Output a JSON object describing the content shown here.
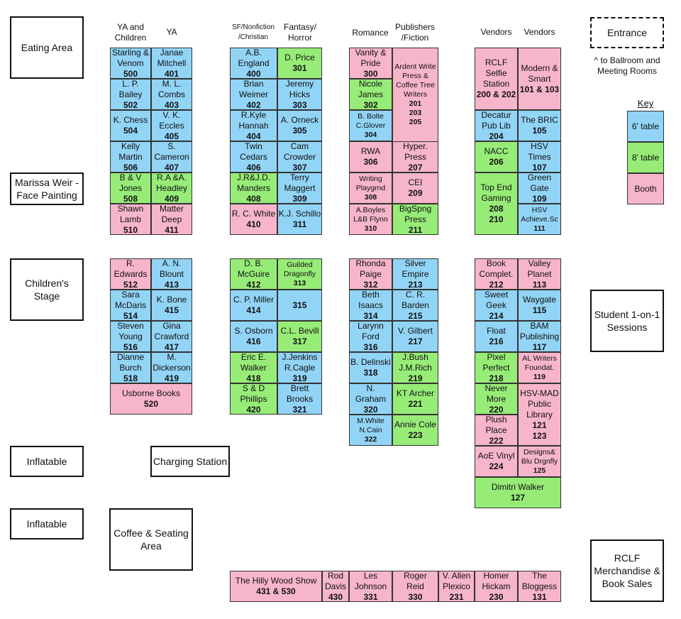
{
  "headers": {
    "c1": "YA and\nChildren",
    "c2": "YA",
    "c3": "SF/Nonfiction\n/Christian",
    "c4": "Fantasy/\nHorror",
    "c5": "Romance",
    "c6": "Publishers\n/Fiction",
    "c7": "Vendors",
    "c8": "Vendors"
  },
  "areas": {
    "eating": "Eating Area",
    "face": "Marissa Weir -\nFace Painting",
    "stage": "Children's\nStage",
    "inflatable1": "Inflatable",
    "charging": "Charging Station",
    "inflatable2": "Inflatable",
    "coffee": "Coffee & Seating\nArea",
    "entrance": "Entrance",
    "student": "Student 1-on-1\nSessions",
    "merch": "RCLF\nMerchandise &\nBook Sales"
  },
  "note": "^ to Ballroom and\nMeeting Rooms",
  "key": {
    "title": "Key",
    "six": "6' table",
    "eight": "8' table",
    "booth": "Booth",
    "colors": {
      "six": "#92d4f6",
      "eight": "#97ec78",
      "booth": "#f7b5ca"
    }
  },
  "booths": {
    "b500": {
      "name": "Starling &\nVenom",
      "num": "500"
    },
    "b401": {
      "name": "Janae\nMitchell",
      "num": "401"
    },
    "b502": {
      "name": "L. P.\nBailey",
      "num": "502"
    },
    "b403": {
      "name": "M. L.\nCombs",
      "num": "403"
    },
    "b504": {
      "name": "K. Chess",
      "num": "504"
    },
    "b405": {
      "name": "V. K.\nEccles",
      "num": "405"
    },
    "b506": {
      "name": "Kelly\nMartin",
      "num": "506"
    },
    "b407": {
      "name": "S.\nCameron",
      "num": "407"
    },
    "b508": {
      "name": "B & V\nJones",
      "num": "508"
    },
    "b409": {
      "name": "R.A &A.\nHeadley",
      "num": "409"
    },
    "b510": {
      "name": "Shawn\nLamb",
      "num": "510"
    },
    "b411": {
      "name": "Matter\nDeep",
      "num": "411"
    },
    "b400": {
      "name": "A.B.\nEngland",
      "num": "400"
    },
    "b301": {
      "name": "D. Price",
      "num": "301"
    },
    "b402": {
      "name": "Brian\nWeimer",
      "num": "402"
    },
    "b303": {
      "name": "Jeremy\nHicks",
      "num": "303"
    },
    "b404": {
      "name": "R.Kyle\nHannah",
      "num": "404"
    },
    "b305": {
      "name": "A. Orneck",
      "num": "305"
    },
    "b406": {
      "name": "Twin\nCedars",
      "num": "406"
    },
    "b307": {
      "name": "Cam\nCrowder",
      "num": "307"
    },
    "b408": {
      "name": "J.R&J.D.\nManders",
      "num": "408"
    },
    "b309": {
      "name": "Terry\nMaggert",
      "num": "309"
    },
    "b410": {
      "name": "R. C. White",
      "num": "410"
    },
    "b311": {
      "name": "K.J. Schillo",
      "num": "311"
    },
    "b300": {
      "name": "Vanity &\nPride",
      "num": "300"
    },
    "b201": {
      "name": "Ardent Write\nPress &\nCoffee Tree\nWriters",
      "num": "201\n203\n205"
    },
    "b302": {
      "name": "Nicole\nJames",
      "num": "302"
    },
    "b304": {
      "name": "B. Bolte\nC.Glover",
      "num": "304"
    },
    "b306": {
      "name": "RWA",
      "num": "306"
    },
    "b207": {
      "name": "Hyper.\nPress",
      "num": "207"
    },
    "b308": {
      "name": "Writing\nPlaygrnd",
      "num": "308"
    },
    "b209": {
      "name": "CEI",
      "num": "209"
    },
    "b310": {
      "name": "A.Boyles\nL&B Flynn",
      "num": "310"
    },
    "b211": {
      "name": "BigSpng\nPress",
      "num": "211"
    },
    "b200": {
      "name": "RCLF\nSelfie\nStation",
      "num": "200 & 202"
    },
    "b101": {
      "name": "Modern &\nSmart",
      "num": "101 & 103"
    },
    "b204": {
      "name": "Decatur\nPub Lib",
      "num": "204"
    },
    "b105": {
      "name": "The BRIC",
      "num": "105"
    },
    "b206": {
      "name": "NACC",
      "num": "206"
    },
    "b107": {
      "name": "HSV\nTimes",
      "num": "107"
    },
    "b208": {
      "name": "Top End\nGaming",
      "num": "208\n210"
    },
    "b109": {
      "name": "Green\nGate",
      "num": "109"
    },
    "b111": {
      "name": "HSV\nAchieve.Sc",
      "num": "111"
    },
    "b512": {
      "name": "R.\nEdwards",
      "num": "512"
    },
    "b413": {
      "name": "A. N.\nBlount",
      "num": "413"
    },
    "b514": {
      "name": "Sara\nMcDaris",
      "num": "514"
    },
    "b415": {
      "name": "K. Bone",
      "num": "415"
    },
    "b516": {
      "name": "Steven\nYoung",
      "num": "516"
    },
    "b417": {
      "name": "Gina\nCrawford",
      "num": "417"
    },
    "b518": {
      "name": "Dianne\nBurch",
      "num": "518"
    },
    "b419": {
      "name": "M.\nDickerson",
      "num": "419"
    },
    "b520": {
      "name": "Usborne Books",
      "num": "520"
    },
    "b412": {
      "name": "D. B.\nMcGuire",
      "num": "412"
    },
    "b313": {
      "name": "Guilded\nDragonfly",
      "num": "313"
    },
    "b414": {
      "name": "C. P. Miller",
      "num": "414"
    },
    "b315": {
      "name": "",
      "num": "315"
    },
    "b416": {
      "name": "S. Osborn",
      "num": "416"
    },
    "b317": {
      "name": "C.L. Bevill",
      "num": "317"
    },
    "b418": {
      "name": "Eric E.\nWalker",
      "num": "418"
    },
    "b319": {
      "name": "J.Jenkins\nR.Cagle",
      "num": "319"
    },
    "b420": {
      "name": "S & D\nPhillips",
      "num": "420"
    },
    "b321": {
      "name": "Brett\nBrooks",
      "num": "321"
    },
    "b312": {
      "name": "Rhonda\nPaige",
      "num": "312"
    },
    "b213": {
      "name": "Silver\nEmpire",
      "num": "213"
    },
    "b314": {
      "name": "Beth\nIsaacs",
      "num": "314"
    },
    "b215": {
      "name": "C. R.\nBarden",
      "num": "215"
    },
    "b316": {
      "name": "Larynn\nFord",
      "num": "316"
    },
    "b217": {
      "name": "V. Gilbert",
      "num": "217"
    },
    "b318": {
      "name": "B. Delinski",
      "num": "318"
    },
    "b219": {
      "name": "J.Bush\nJ.M.Rich",
      "num": "219"
    },
    "b320": {
      "name": "N.\nGraham",
      "num": "320"
    },
    "b221": {
      "name": "KT Archer",
      "num": "221"
    },
    "b322": {
      "name": "M.White\nN.Cain",
      "num": "322"
    },
    "b223": {
      "name": "Annie Cole",
      "num": "223"
    },
    "b212": {
      "name": "Book\nComplet.",
      "num": "212"
    },
    "b113": {
      "name": "Valley\nPlanet",
      "num": "113"
    },
    "b214": {
      "name": "Sweet\nGeek",
      "num": "214"
    },
    "b115": {
      "name": "Waygate",
      "num": "115"
    },
    "b216": {
      "name": "Float",
      "num": "216"
    },
    "b117": {
      "name": "BAM\nPublishing",
      "num": "117"
    },
    "b218": {
      "name": "Pixel\nPerfect",
      "num": "218"
    },
    "b119": {
      "name": "AL Writers\nFoundat.",
      "num": "119"
    },
    "b220": {
      "name": "Never\nMore",
      "num": "220"
    },
    "b121": {
      "name": "HSV-MAD\nPublic\nLibrary",
      "num": "121\n123"
    },
    "b222": {
      "name": "Plush\nPlace",
      "num": "222"
    },
    "b224": {
      "name": "AoE Vinyl",
      "num": "224"
    },
    "b125": {
      "name": "Designs&\nBlu Drgnfly",
      "num": "125"
    },
    "b127": {
      "name": "Dimitri Walker",
      "num": "127"
    },
    "b431": {
      "name": "The Hilly Wood Show",
      "num": "431 & 530"
    },
    "b430": {
      "name": "Rod\nDavis",
      "num": "430"
    },
    "b331": {
      "name": "Les\nJohnson",
      "num": "331"
    },
    "b330": {
      "name": "Roger\nReid",
      "num": "330"
    },
    "b231": {
      "name": "V. Allen\nPlexico",
      "num": "231"
    },
    "b230": {
      "name": "Homer\nHickam",
      "num": "230"
    },
    "b131": {
      "name": "The\nBloggess",
      "num": "131"
    }
  }
}
